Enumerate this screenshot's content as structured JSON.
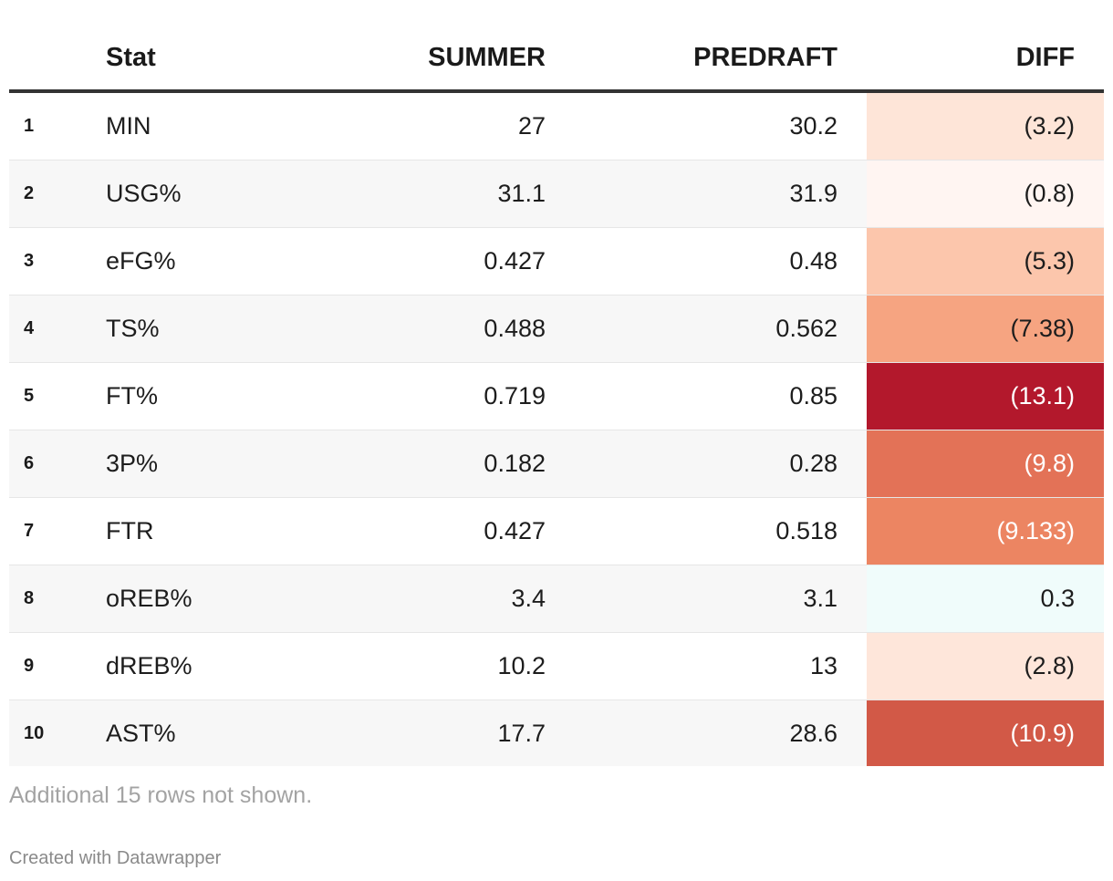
{
  "chart_data": {
    "type": "table",
    "columns": [
      "",
      "Stat",
      "SUMMER",
      "PREDRAFT",
      "DIFF"
    ],
    "rows": [
      {
        "rank": "1",
        "stat": "MIN",
        "summer": "27",
        "predraft": "30.2",
        "diff": "(3.2)",
        "diff_value": -3.2,
        "diff_color": "#fee5d8",
        "diff_text_color": "#1d1d1d"
      },
      {
        "rank": "2",
        "stat": "USG%",
        "summer": "31.1",
        "predraft": "31.9",
        "diff": "(0.8)",
        "diff_value": -0.8,
        "diff_color": "#fff5f2",
        "diff_text_color": "#1d1d1d"
      },
      {
        "rank": "3",
        "stat": "eFG%",
        "summer": "0.427",
        "predraft": "0.48",
        "diff": "(5.3)",
        "diff_value": -5.3,
        "diff_color": "#fcc6ac",
        "diff_text_color": "#1d1d1d"
      },
      {
        "rank": "4",
        "stat": "TS%",
        "summer": "0.488",
        "predraft": "0.562",
        "diff": "(7.38)",
        "diff_value": -7.38,
        "diff_color": "#f6a481",
        "diff_text_color": "#1d1d1d"
      },
      {
        "rank": "5",
        "stat": "FT%",
        "summer": "0.719",
        "predraft": "0.85",
        "diff": "(13.1)",
        "diff_value": -13.1,
        "diff_color": "#b3182c",
        "diff_text_color": "#ffffff"
      },
      {
        "rank": "6",
        "stat": "3P%",
        "summer": "0.182",
        "predraft": "0.28",
        "diff": "(9.8)",
        "diff_value": -9.8,
        "diff_color": "#e37257",
        "diff_text_color": "#ffffff"
      },
      {
        "rank": "7",
        "stat": "FTR",
        "summer": "0.427",
        "predraft": "0.518",
        "diff": "(9.133)",
        "diff_value": -9.133,
        "diff_color": "#ec8562",
        "diff_text_color": "#ffffff"
      },
      {
        "rank": "8",
        "stat": "oREB%",
        "summer": "3.4",
        "predraft": "3.1",
        "diff": "0.3",
        "diff_value": 0.3,
        "diff_color": "#f0fcfb",
        "diff_text_color": "#1d1d1d"
      },
      {
        "rank": "9",
        "stat": "dREB%",
        "summer": "10.2",
        "predraft": "13",
        "diff": "(2.8)",
        "diff_value": -2.8,
        "diff_color": "#fee6da",
        "diff_text_color": "#1d1d1d"
      },
      {
        "rank": "10",
        "stat": "AST%",
        "summer": "17.7",
        "predraft": "28.6",
        "diff": "(10.9)",
        "diff_value": -10.9,
        "diff_color": "#d25947",
        "diff_text_color": "#ffffff"
      }
    ]
  },
  "footer": {
    "note": "Additional 15 rows not shown.",
    "credit": "Created with Datawrapper"
  }
}
